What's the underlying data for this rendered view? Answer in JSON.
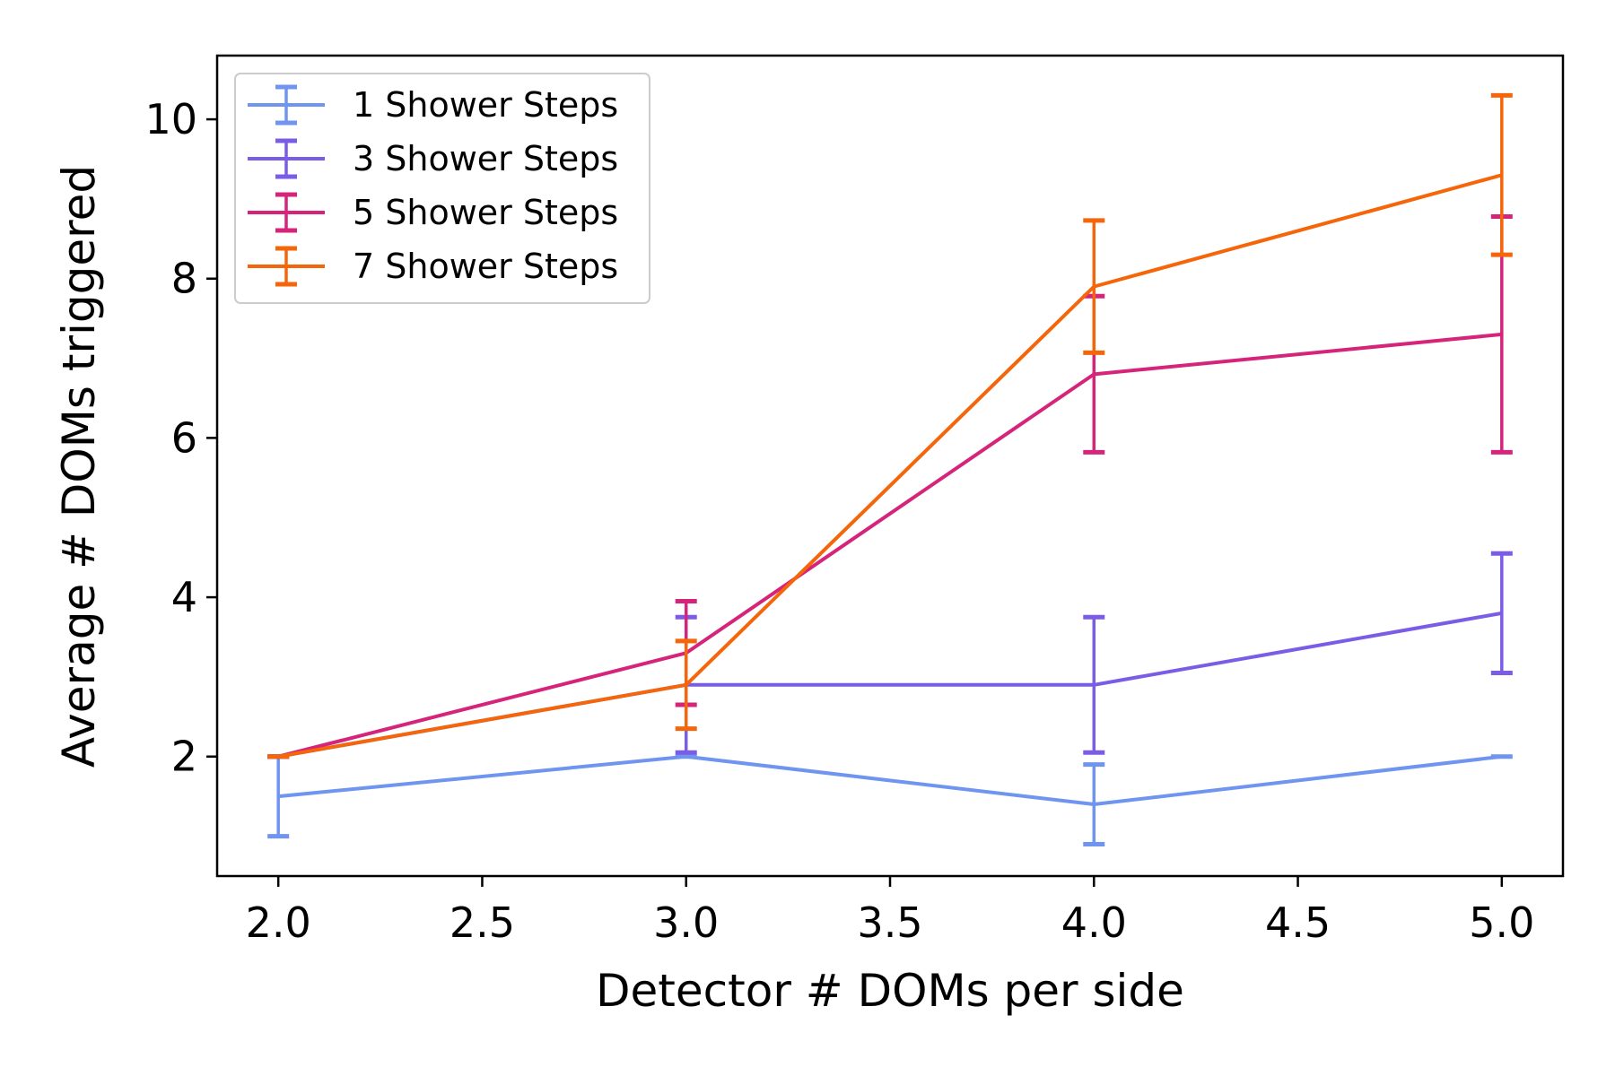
{
  "chart_data": {
    "type": "line",
    "title": "",
    "xlabel": "Detector # DOMs per side",
    "ylabel": "Average # DOMs triggered",
    "xlim": [
      1.85,
      5.15
    ],
    "ylim": [
      0.5,
      10.8
    ],
    "xticks": [
      2.0,
      2.5,
      3.0,
      3.5,
      4.0,
      4.5,
      5.0
    ],
    "xtick_labels": [
      "2.0",
      "2.5",
      "3.0",
      "3.5",
      "4.0",
      "4.5",
      "5.0"
    ],
    "yticks": [
      2,
      4,
      6,
      8,
      10
    ],
    "ytick_labels": [
      "2",
      "4",
      "6",
      "8",
      "10"
    ],
    "grid": false,
    "legend_position": "top-left",
    "x": [
      2,
      3,
      4,
      5
    ],
    "series": [
      {
        "name": "1 Shower Steps",
        "color": "#6f95f0",
        "values": [
          1.5,
          2.0,
          1.4,
          2.0
        ],
        "errors": [
          0.5,
          0.0,
          0.5,
          0.0
        ]
      },
      {
        "name": "3 Shower Steps",
        "color": "#7b5ce6",
        "values": [
          2.0,
          2.9,
          2.9,
          3.8
        ],
        "errors": [
          0.0,
          0.85,
          0.85,
          0.75
        ]
      },
      {
        "name": "5 Shower Steps",
        "color": "#d6247b",
        "values": [
          2.0,
          3.3,
          6.8,
          7.3
        ],
        "errors": [
          0.0,
          0.65,
          0.98,
          1.48
        ]
      },
      {
        "name": "7 Shower Steps",
        "color": "#f5650a",
        "values": [
          2.0,
          2.9,
          7.9,
          9.3
        ],
        "errors": [
          0.0,
          0.55,
          0.83,
          1.0
        ]
      }
    ]
  }
}
